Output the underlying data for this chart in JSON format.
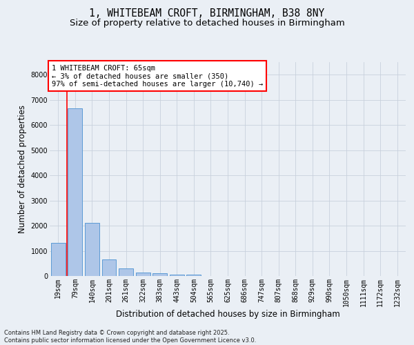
{
  "title_line1": "1, WHITEBEAM CROFT, BIRMINGHAM, B38 8NY",
  "title_line2": "Size of property relative to detached houses in Birmingham",
  "xlabel": "Distribution of detached houses by size in Birmingham",
  "ylabel": "Number of detached properties",
  "categories": [
    "19sqm",
    "79sqm",
    "140sqm",
    "201sqm",
    "261sqm",
    "322sqm",
    "383sqm",
    "443sqm",
    "504sqm",
    "565sqm",
    "625sqm",
    "686sqm",
    "747sqm",
    "807sqm",
    "868sqm",
    "929sqm",
    "990sqm",
    "1050sqm",
    "1111sqm",
    "1172sqm",
    "1232sqm"
  ],
  "values": [
    1320,
    6650,
    2100,
    650,
    300,
    130,
    100,
    65,
    50,
    0,
    0,
    0,
    0,
    0,
    0,
    0,
    0,
    0,
    0,
    0,
    0
  ],
  "bar_color": "#aec6e8",
  "bar_edge_color": "#5b9bd5",
  "highlight_color": "#ff0000",
  "annotation_text": "1 WHITEBEAM CROFT: 65sqm\n← 3% of detached houses are smaller (350)\n97% of semi-detached houses are larger (10,740) →",
  "annotation_box_color": "#ffffff",
  "annotation_box_edgecolor": "#ff0000",
  "vline_x": 0.5,
  "ylim": [
    0,
    8500
  ],
  "yticks": [
    0,
    1000,
    2000,
    3000,
    4000,
    5000,
    6000,
    7000,
    8000
  ],
  "grid_color": "#c8d0dc",
  "background_color": "#eaeff5",
  "plot_background": "#eaeff5",
  "footer_text": "Contains HM Land Registry data © Crown copyright and database right 2025.\nContains public sector information licensed under the Open Government Licence v3.0.",
  "title_fontsize": 10.5,
  "subtitle_fontsize": 9.5,
  "axis_label_fontsize": 8.5,
  "tick_fontsize": 7,
  "annotation_fontsize": 7.5,
  "footer_fontsize": 6
}
